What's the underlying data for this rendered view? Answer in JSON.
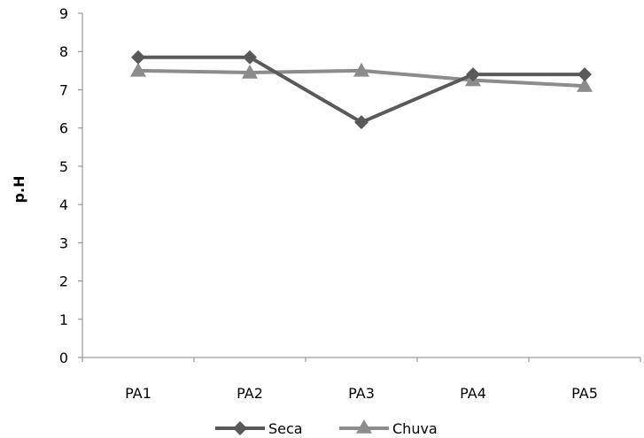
{
  "chart_data": {
    "type": "line",
    "title": "",
    "xlabel": "",
    "ylabel": "p.H",
    "categories": [
      "PA1",
      "PA2",
      "PA3",
      "PA4",
      "PA5"
    ],
    "ylim": [
      0,
      9
    ],
    "yticks": [
      0,
      1,
      2,
      3,
      4,
      5,
      6,
      7,
      8,
      9
    ],
    "grid": false,
    "legend_position": "bottom",
    "series": [
      {
        "name": "Seca",
        "values": [
          7.85,
          7.85,
          6.15,
          7.4,
          7.4
        ],
        "color": "#595959",
        "marker": "diamond"
      },
      {
        "name": "Chuva",
        "values": [
          7.5,
          7.45,
          7.5,
          7.25,
          7.1
        ],
        "color": "#8c8c8c",
        "marker": "triangle"
      }
    ]
  }
}
